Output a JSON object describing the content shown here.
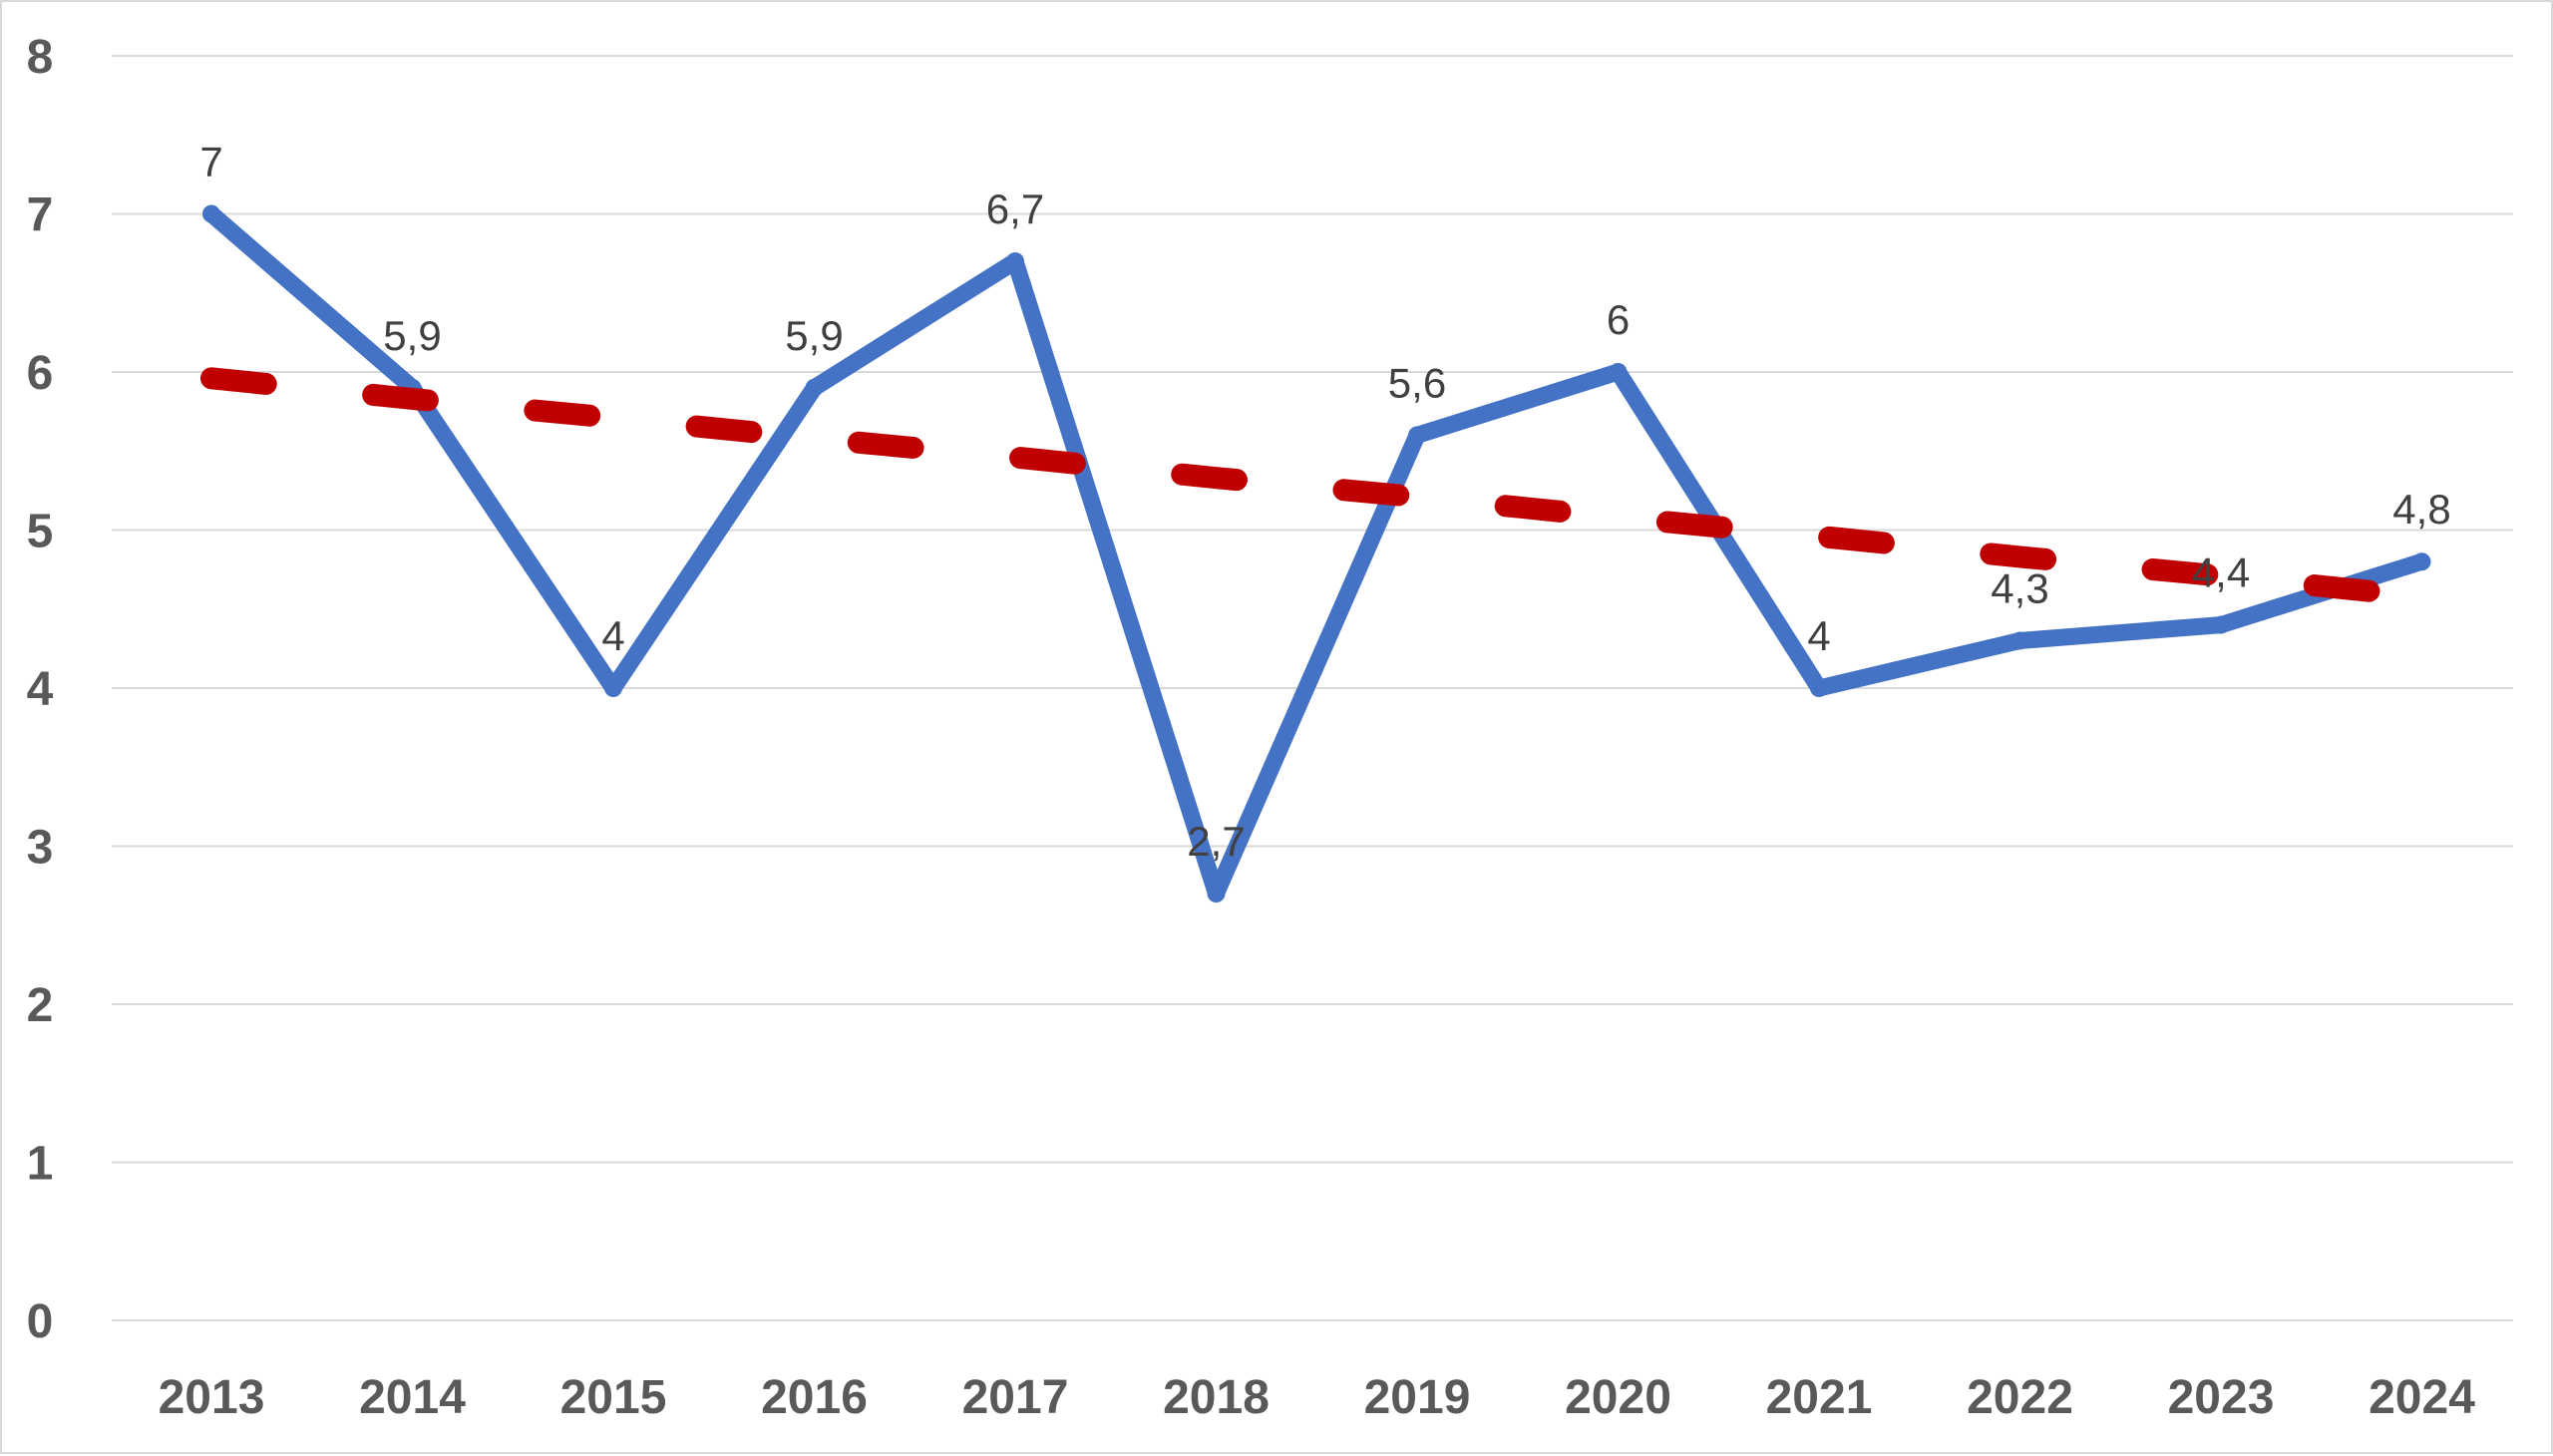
{
  "chart_data": {
    "type": "line",
    "categories": [
      "2013",
      "2014",
      "2015",
      "2016",
      "2017",
      "2018",
      "2019",
      "2020",
      "2021",
      "2022",
      "2023",
      "2024"
    ],
    "series": [
      {
        "values": [
          7,
          5.9,
          4,
          5.9,
          6.7,
          2.7,
          5.6,
          6,
          4,
          4.3,
          4.4,
          4.8
        ],
        "data_labels": [
          "7",
          "5,9",
          "4",
          "5,9",
          "6,7",
          "2,7",
          "5,6",
          "6",
          "4",
          "4,3",
          "4,4",
          "4,8"
        ],
        "color": "#4472C4",
        "style": "solid"
      },
      {
        "type": "linear-trendline",
        "values": [
          5.96,
          5.83,
          5.71,
          5.58,
          5.46,
          5.33,
          5.21,
          5.08,
          4.96,
          4.83,
          4.71,
          4.58
        ],
        "color": "#C00000",
        "style": "dashed"
      }
    ],
    "title": "",
    "xlabel": "",
    "ylabel": "",
    "ylim": [
      0,
      8
    ],
    "yticks": [
      "0",
      "1",
      "2",
      "3",
      "4",
      "5",
      "6",
      "7",
      "8"
    ],
    "grid": "horizontal",
    "legend": "none"
  }
}
